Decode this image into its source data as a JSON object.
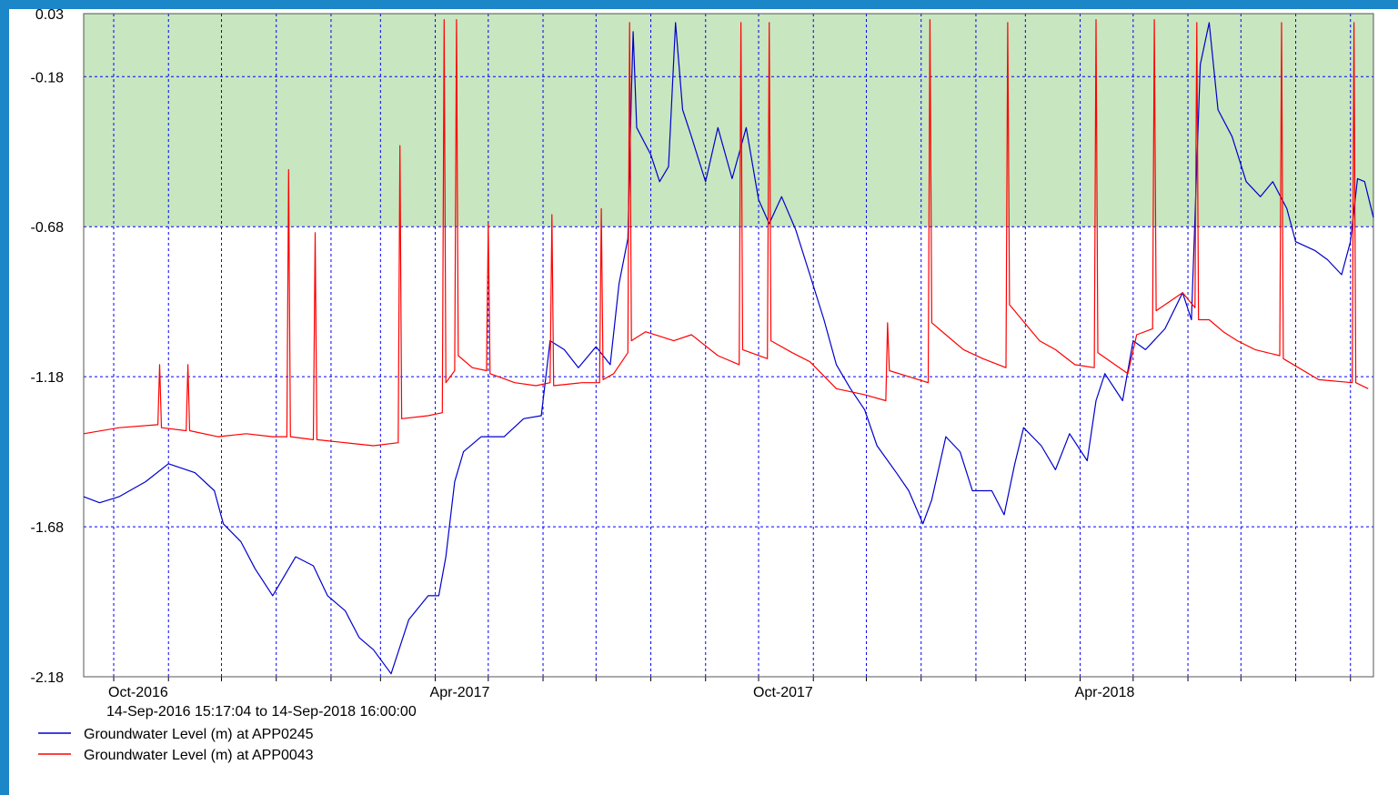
{
  "chart_data": {
    "type": "line",
    "subtitle": "14-Sep-2016 15:17:04 to 14-Sep-2018 16:00:00",
    "xlim": [
      "2016-09-14",
      "2018-09-14"
    ],
    "xticks": [
      {
        "value": "2016-10-01",
        "label": "Oct-2016"
      },
      {
        "value": "2016-11-01",
        "label": null
      },
      {
        "value": "2016-12-01",
        "label": null
      },
      {
        "value": "2017-01-01",
        "label": null
      },
      {
        "value": "2017-02-01",
        "label": null
      },
      {
        "value": "2017-03-01",
        "label": null
      },
      {
        "value": "2017-04-01",
        "label": "Apr-2017"
      },
      {
        "value": "2017-05-01",
        "label": null
      },
      {
        "value": "2017-06-01",
        "label": null
      },
      {
        "value": "2017-07-01",
        "label": null
      },
      {
        "value": "2017-08-01",
        "label": null
      },
      {
        "value": "2017-09-01",
        "label": null
      },
      {
        "value": "2017-10-01",
        "label": "Oct-2017"
      },
      {
        "value": "2017-11-01",
        "label": null
      },
      {
        "value": "2017-12-01",
        "label": null
      },
      {
        "value": "2018-01-01",
        "label": null
      },
      {
        "value": "2018-02-01",
        "label": null
      },
      {
        "value": "2018-03-01",
        "label": null
      },
      {
        "value": "2018-04-01",
        "label": "Apr-2018"
      },
      {
        "value": "2018-05-01",
        "label": null
      },
      {
        "value": "2018-06-01",
        "label": null
      },
      {
        "value": "2018-07-01",
        "label": null
      },
      {
        "value": "2018-08-01",
        "label": null
      },
      {
        "value": "2018-09-01",
        "label": null
      }
    ],
    "ylim": [
      -2.18,
      0.03
    ],
    "yticks": [
      0.03,
      -0.18,
      -0.68,
      -1.18,
      -1.68,
      -2.18
    ],
    "grid": true,
    "band": {
      "from": -0.68,
      "to": 0.03,
      "color": "#c8e6c0"
    },
    "legend": "bottom-left",
    "series": [
      {
        "name": "Groundwater Level (m) at APP0245",
        "color": "#0000cc",
        "x": [
          "2016-09-14",
          "2016-09-23",
          "2016-10-04",
          "2016-10-19",
          "2016-11-01",
          "2016-11-16",
          "2016-11-27",
          "2016-12-02",
          "2016-12-12",
          "2016-12-20",
          "2016-12-30",
          "2017-01-12",
          "2017-01-22",
          "2017-01-30",
          "2017-02-09",
          "2017-02-17",
          "2017-02-25",
          "2017-03-07",
          "2017-03-17",
          "2017-03-28",
          "2017-04-03",
          "2017-04-07",
          "2017-04-12",
          "2017-04-17",
          "2017-04-27",
          "2017-05-10",
          "2017-05-21",
          "2017-05-31",
          "2017-06-05",
          "2017-06-13",
          "2017-06-21",
          "2017-07-01",
          "2017-07-09",
          "2017-07-14",
          "2017-07-19",
          "2017-07-21",
          "2017-07-22",
          "2017-07-24",
          "2017-08-01",
          "2017-08-06",
          "2017-08-11",
          "2017-08-15",
          "2017-08-19",
          "2017-08-24",
          "2017-09-01",
          "2017-09-08",
          "2017-09-16",
          "2017-09-24",
          "2017-10-01",
          "2017-10-07",
          "2017-10-14",
          "2017-10-22",
          "2017-10-30",
          "2017-11-07",
          "2017-11-14",
          "2017-11-22",
          "2017-11-30",
          "2017-12-07",
          "2017-12-18",
          "2017-12-25",
          "2018-01-02",
          "2018-01-07",
          "2018-01-15",
          "2018-01-23",
          "2018-01-30",
          "2018-02-10",
          "2018-02-17",
          "2018-02-23",
          "2018-02-28",
          "2018-03-10",
          "2018-03-18",
          "2018-03-26",
          "2018-04-05",
          "2018-04-10",
          "2018-04-15",
          "2018-04-25",
          "2018-05-01",
          "2018-05-08",
          "2018-05-19",
          "2018-05-29",
          "2018-06-03",
          "2018-06-08",
          "2018-06-13",
          "2018-06-18",
          "2018-06-26",
          "2018-07-04",
          "2018-07-12",
          "2018-07-19",
          "2018-07-27",
          "2018-08-01",
          "2018-08-12",
          "2018-08-19",
          "2018-08-27",
          "2018-09-01",
          "2018-09-05",
          "2018-09-09",
          "2018-09-14"
        ],
        "values": [
          -1.58,
          -1.6,
          -1.58,
          -1.53,
          -1.47,
          -1.5,
          -1.56,
          -1.67,
          -1.73,
          -1.82,
          -1.91,
          -1.78,
          -1.81,
          -1.91,
          -1.96,
          -2.05,
          -2.09,
          -2.17,
          -1.99,
          -1.91,
          -1.91,
          -1.78,
          -1.53,
          -1.43,
          -1.38,
          -1.38,
          -1.32,
          -1.31,
          -1.06,
          -1.09,
          -1.15,
          -1.08,
          -1.14,
          -0.87,
          -0.72,
          -0.23,
          -0.03,
          -0.35,
          -0.44,
          -0.53,
          -0.48,
          0.0,
          -0.29,
          -0.38,
          -0.53,
          -0.35,
          -0.52,
          -0.35,
          -0.59,
          -0.67,
          -0.58,
          -0.69,
          -0.84,
          -0.99,
          -1.14,
          -1.22,
          -1.29,
          -1.41,
          -1.5,
          -1.56,
          -1.67,
          -1.59,
          -1.38,
          -1.43,
          -1.56,
          -1.56,
          -1.64,
          -1.47,
          -1.35,
          -1.41,
          -1.49,
          -1.37,
          -1.46,
          -1.26,
          -1.17,
          -1.26,
          -1.06,
          -1.09,
          -1.02,
          -0.9,
          -0.99,
          -0.14,
          0.0,
          -0.29,
          -0.38,
          -0.53,
          -0.58,
          -0.53,
          -0.62,
          -0.73,
          -0.76,
          -0.79,
          -0.84,
          -0.73,
          -0.52,
          -0.53,
          -0.65
        ]
      },
      {
        "name": "Groundwater Level (m) at APP0043",
        "color": "#ff0000",
        "x": [
          "2016-09-14",
          "2016-10-04",
          "2016-10-26",
          "2016-10-27",
          "2016-10-28",
          "2016-11-11",
          "2016-11-12",
          "2016-11-13",
          "2016-11-29",
          "2016-12-15",
          "2016-12-30",
          "2017-01-07",
          "2017-01-08",
          "2017-01-09",
          "2017-01-22",
          "2017-01-23",
          "2017-01-24",
          "2017-02-09",
          "2017-02-25",
          "2017-03-11",
          "2017-03-12",
          "2017-03-13",
          "2017-03-28",
          "2017-04-05",
          "2017-04-06",
          "2017-04-07",
          "2017-04-12",
          "2017-04-13",
          "2017-04-14",
          "2017-04-22",
          "2017-04-30",
          "2017-05-01",
          "2017-05-02",
          "2017-05-16",
          "2017-05-28",
          "2017-06-05",
          "2017-06-06",
          "2017-06-07",
          "2017-06-23",
          "2017-07-03",
          "2017-07-04",
          "2017-07-05",
          "2017-07-11",
          "2017-07-19",
          "2017-07-20",
          "2017-07-21",
          "2017-07-29",
          "2017-08-14",
          "2017-08-24",
          "2017-09-08",
          "2017-09-20",
          "2017-09-21",
          "2017-09-22",
          "2017-10-06",
          "2017-10-07",
          "2017-10-08",
          "2017-10-20",
          "2017-10-30",
          "2017-11-14",
          "2017-11-30",
          "2017-12-12",
          "2017-12-13",
          "2017-12-14",
          "2017-12-25",
          "2018-01-05",
          "2018-01-06",
          "2018-01-07",
          "2018-01-15",
          "2018-01-25",
          "2018-02-05",
          "2018-02-18",
          "2018-02-19",
          "2018-02-20",
          "2018-03-09",
          "2018-03-18",
          "2018-03-29",
          "2018-04-09",
          "2018-04-10",
          "2018-04-11",
          "2018-04-28",
          "2018-05-03",
          "2018-05-12",
          "2018-05-13",
          "2018-05-14",
          "2018-05-29",
          "2018-06-05",
          "2018-06-06",
          "2018-06-07",
          "2018-06-13",
          "2018-06-21",
          "2018-06-29",
          "2018-07-09",
          "2018-07-23",
          "2018-07-24",
          "2018-07-25",
          "2018-08-14",
          "2018-09-02",
          "2018-09-03",
          "2018-09-04",
          "2018-09-11"
        ],
        "values": [
          -1.37,
          -1.35,
          -1.34,
          -1.14,
          -1.35,
          -1.36,
          -1.14,
          -1.36,
          -1.38,
          -1.37,
          -1.38,
          -1.38,
          -0.49,
          -1.38,
          -1.39,
          -0.7,
          -1.39,
          -1.4,
          -1.41,
          -1.4,
          -0.41,
          -1.32,
          -1.31,
          -1.3,
          0.01,
          -1.2,
          -1.16,
          0.01,
          -1.11,
          -1.15,
          -1.16,
          -0.67,
          -1.17,
          -1.2,
          -1.21,
          -1.2,
          -0.64,
          -1.21,
          -1.2,
          -1.2,
          -0.62,
          -1.19,
          -1.17,
          -1.1,
          0.0,
          -1.06,
          -1.03,
          -1.06,
          -1.04,
          -1.11,
          -1.14,
          0.0,
          -1.09,
          -1.12,
          0.0,
          -1.06,
          -1.1,
          -1.13,
          -1.22,
          -1.24,
          -1.26,
          -1.0,
          -1.16,
          -1.18,
          -1.2,
          0.01,
          -1.0,
          -1.04,
          -1.09,
          -1.12,
          -1.15,
          0.0,
          -0.94,
          -1.06,
          -1.09,
          -1.14,
          -1.15,
          0.01,
          -1.1,
          -1.17,
          -1.04,
          -1.02,
          0.01,
          -0.96,
          -0.9,
          -0.95,
          0.0,
          -0.99,
          -0.99,
          -1.03,
          -1.06,
          -1.09,
          -1.11,
          0.0,
          -1.12,
          -1.19,
          -1.2,
          0.0,
          -1.2,
          -1.22
        ]
      }
    ]
  }
}
